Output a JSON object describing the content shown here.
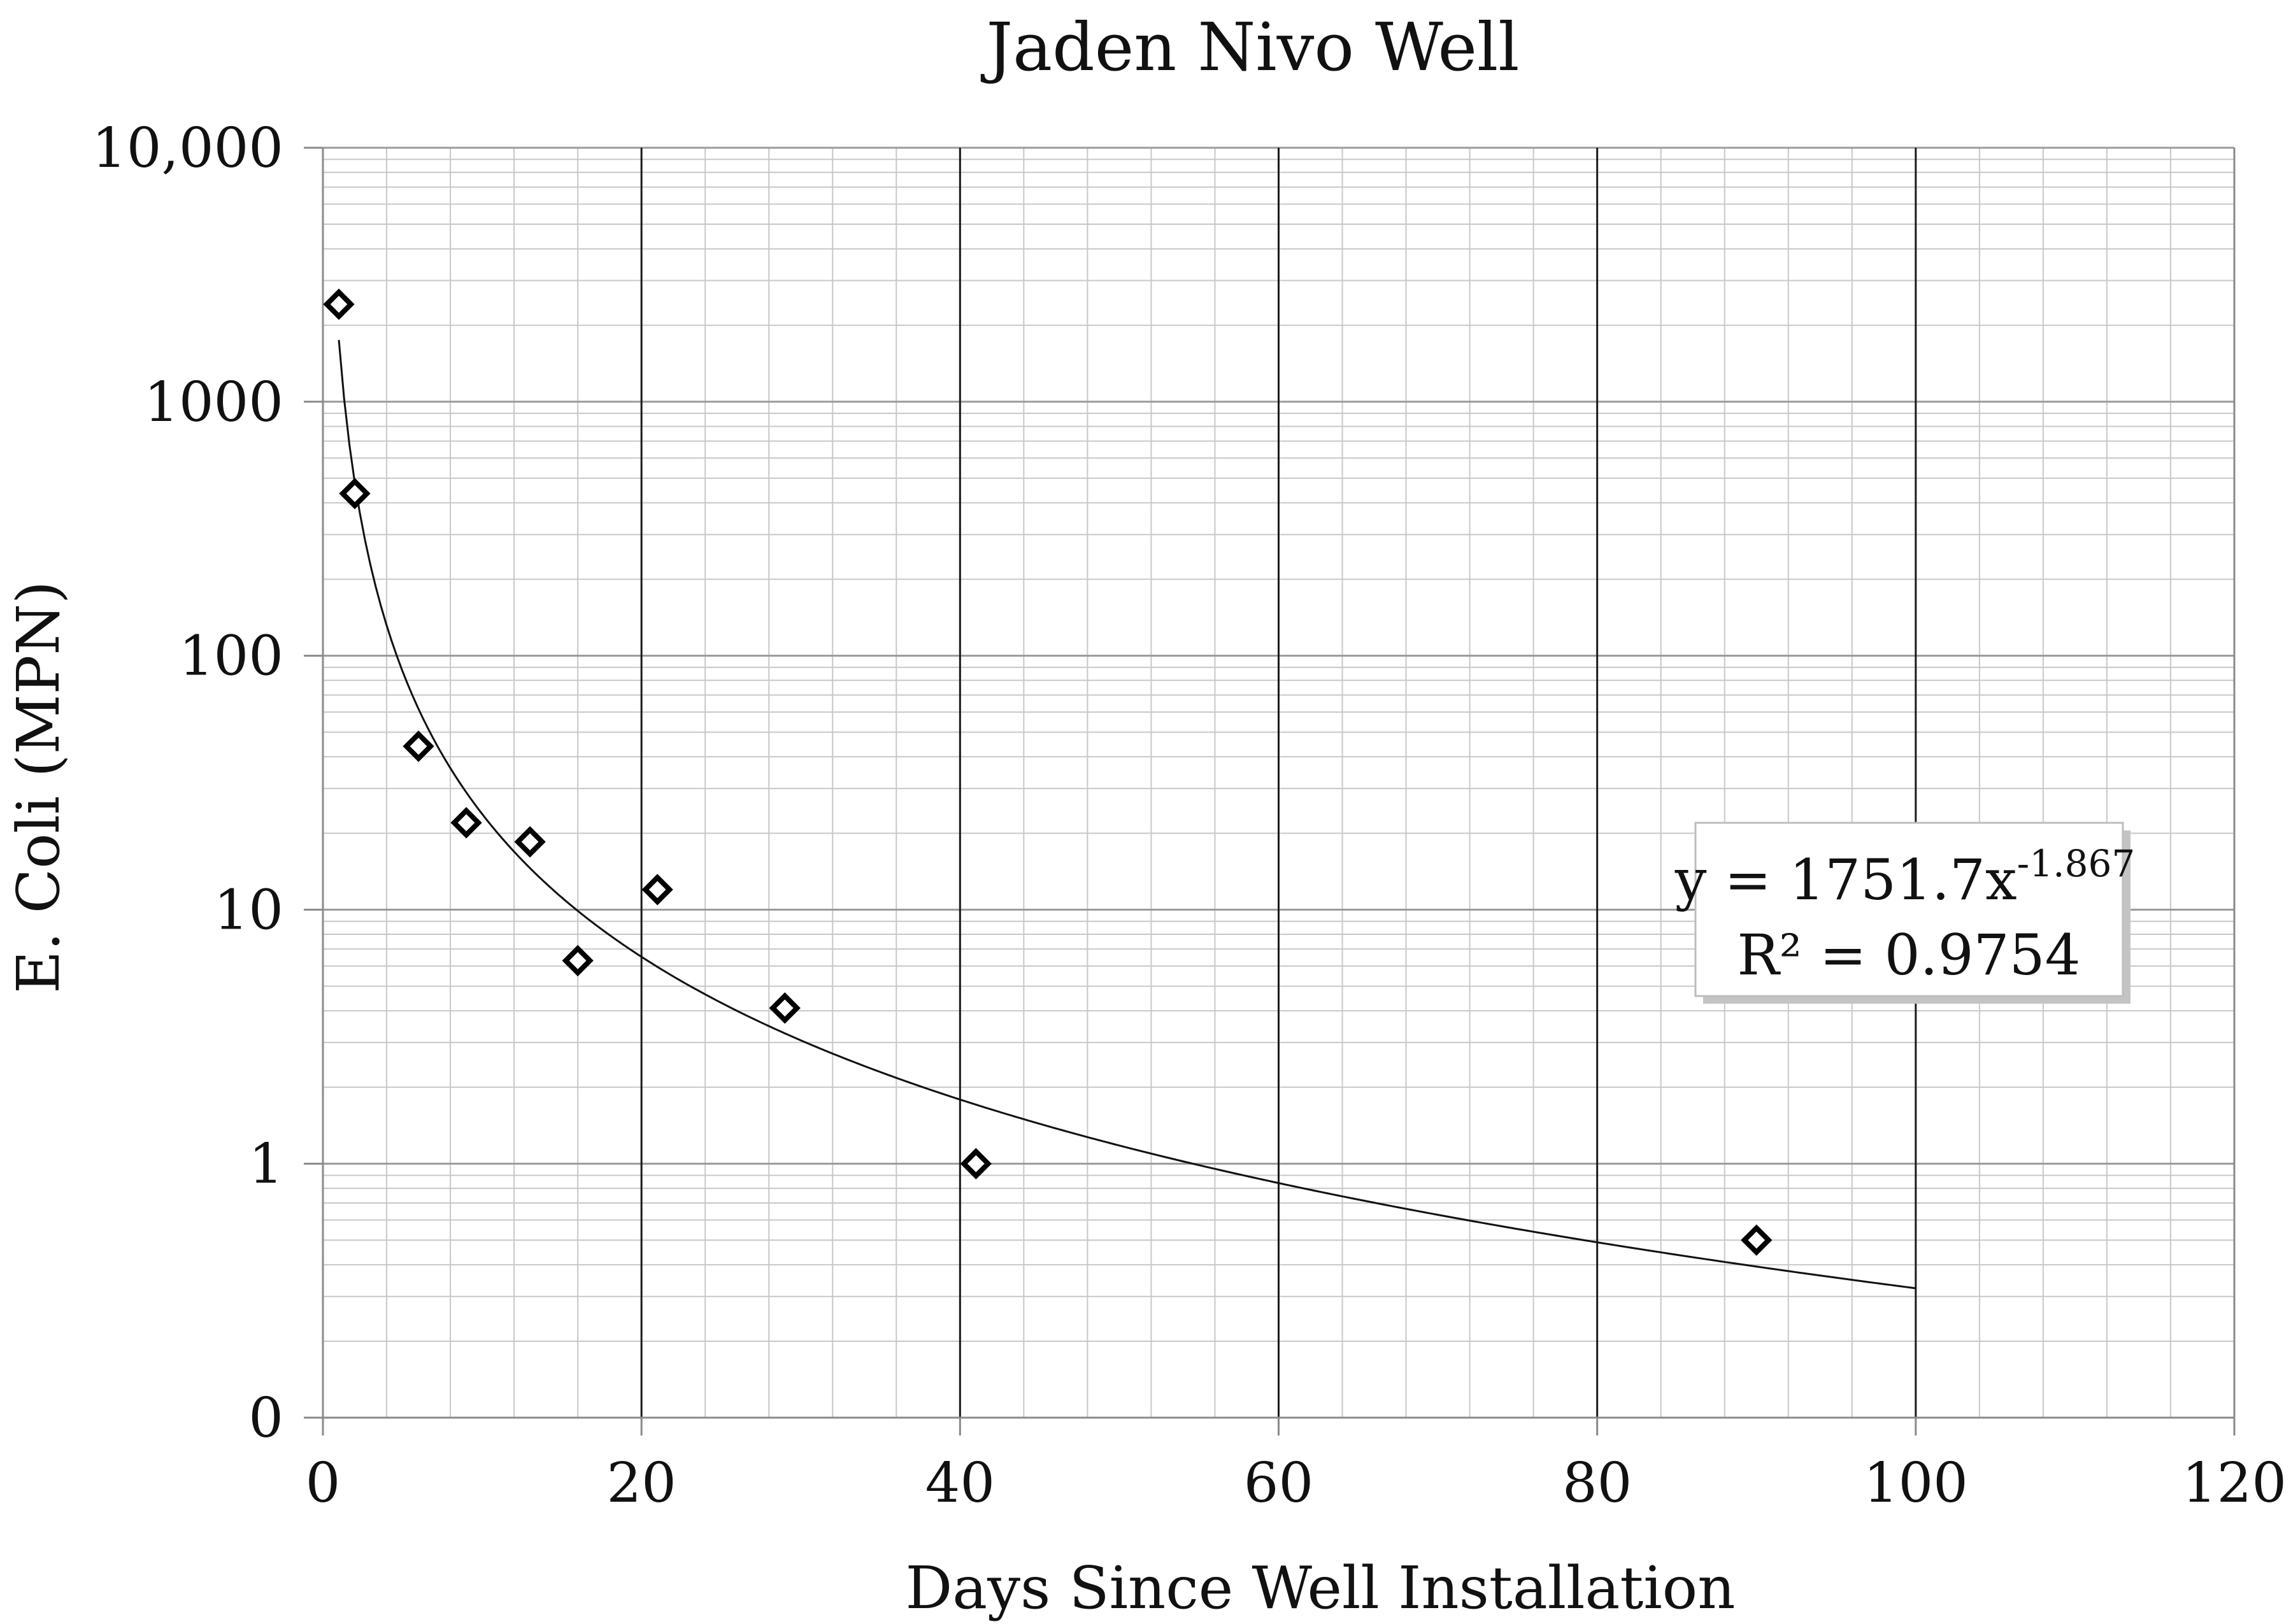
{
  "chart_data": {
    "type": "scatter",
    "title": "Jaden Nivo Well",
    "xlabel": "Days Since Well Installation",
    "ylabel": "E. Coli (MPN)",
    "xlim": [
      0,
      120
    ],
    "ylim_log10": [
      -1,
      4
    ],
    "y_scale": "log",
    "x_ticks": [
      0,
      20,
      40,
      60,
      80,
      100,
      120
    ],
    "x_tick_labels": [
      "0",
      "20",
      "40",
      "60",
      "80",
      "100",
      "120"
    ],
    "y_ticks": [
      0.1,
      1,
      10,
      100,
      1000,
      10000
    ],
    "y_tick_labels": [
      "0",
      "1",
      "10",
      "100",
      "1000",
      "10,000"
    ],
    "grid": true,
    "series": [
      {
        "name": "E. Coli",
        "marker": "diamond-open",
        "x": [
          1,
          2,
          6,
          9,
          13,
          16,
          21,
          29,
          41,
          90
        ],
        "y": [
          2420,
          435,
          44,
          22,
          18.5,
          6.3,
          12,
          4.1,
          1,
          0.5
        ]
      }
    ],
    "trendline": {
      "type": "power",
      "coefficient": 1751.7,
      "exponent": -1.867,
      "x_range": [
        1,
        100
      ],
      "equation_base": "y = 1751.7x",
      "equation_exponent": "-1.867",
      "r_squared_label": "R² = 0.9754",
      "label_position": "right"
    },
    "colors": {
      "marker": "#000000",
      "trendline": "#111111",
      "grid_major": "#1a1a1a",
      "grid_minor": "#c8c8c8"
    }
  }
}
